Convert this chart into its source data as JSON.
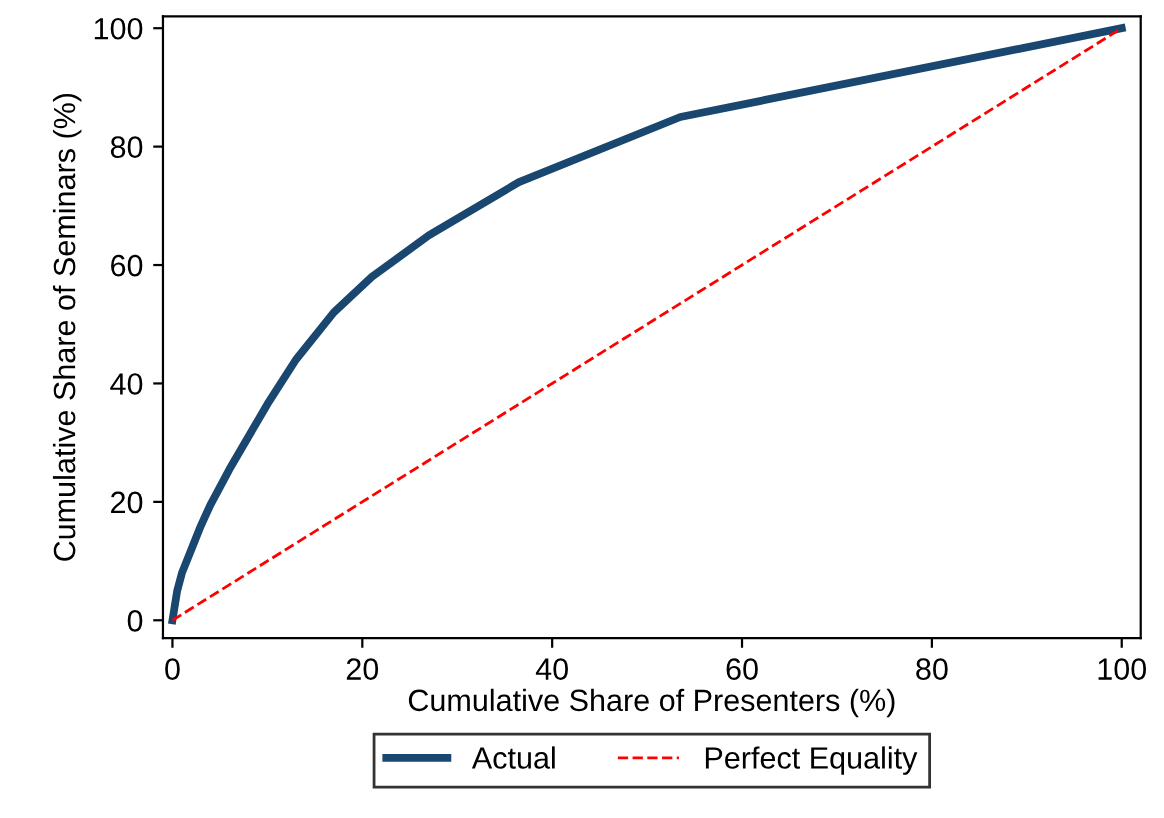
{
  "chart_data": {
    "type": "line",
    "xlabel": "Cumulative Share of Presenters (%)",
    "ylabel": "Cumulative Share of Seminars (%)",
    "xlim": [
      -1,
      102
    ],
    "ylim": [
      -3,
      102
    ],
    "xticks": [
      0,
      20,
      40,
      60,
      80,
      100
    ],
    "yticks": [
      0,
      20,
      40,
      60,
      80,
      100
    ],
    "grid": false,
    "legend": "bottom",
    "series": [
      {
        "name": "Actual",
        "color": "#1a476f",
        "line_style": "solid",
        "x": [
          0,
          0.5,
          1,
          2,
          3,
          4,
          6,
          8,
          10,
          13,
          17,
          21,
          27,
          36.5,
          53.5,
          100
        ],
        "values": [
          0,
          5,
          8,
          12,
          16,
          19.5,
          25.5,
          31,
          36.5,
          44,
          52,
          58,
          65,
          74,
          85,
          100
        ]
      },
      {
        "name": "Perfect Equality",
        "color": "#ff0000",
        "line_style": "dashed",
        "x": [
          0,
          100
        ],
        "values": [
          0,
          100
        ]
      }
    ]
  }
}
